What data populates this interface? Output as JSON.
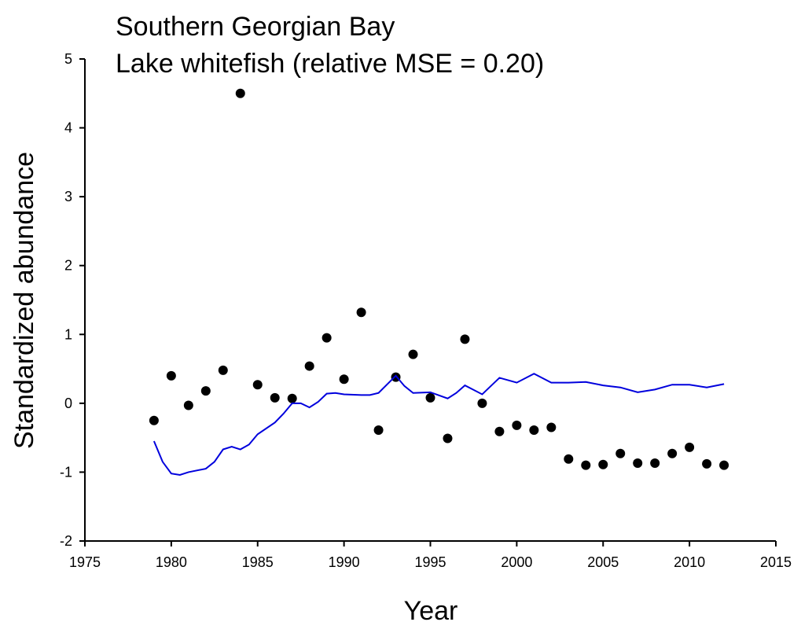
{
  "chart_data": {
    "type": "scatter",
    "title": "Southern Georgian Bay",
    "subtitle": "Lake whitefish (relative MSE = 0.20)",
    "x_label": "Year",
    "y_label": "Standardized abundance",
    "xlim": [
      1975,
      2015
    ],
    "xticks": [
      1975,
      1980,
      1985,
      1990,
      1995,
      2000,
      2005,
      2010,
      2015
    ],
    "ylim": [
      -2,
      5
    ],
    "yticks": [
      -2,
      -1,
      0,
      1,
      2,
      3,
      4,
      5
    ],
    "grid": false,
    "series": [
      {
        "style": "points",
        "color": "#000000",
        "x": [
          1979,
          1980,
          1981,
          1982,
          1983,
          1984,
          1985,
          1986,
          1987,
          1988,
          1989,
          1990,
          1991,
          1992,
          1993,
          1994,
          1995,
          1996,
          1997,
          1998,
          1999,
          2000,
          2001,
          2002,
          2003,
          2004,
          2005,
          2006,
          2007,
          2008,
          2009,
          2010,
          2011,
          2012
        ],
        "values": [
          -0.25,
          0.4,
          -0.03,
          0.18,
          0.48,
          4.5,
          0.27,
          0.08,
          0.07,
          0.54,
          0.95,
          0.35,
          1.32,
          -0.39,
          0.38,
          0.71,
          0.08,
          -0.51,
          0.93,
          0.0,
          -0.41,
          -0.32,
          -0.39,
          -0.35,
          -0.81,
          -0.9,
          -0.89,
          -0.73,
          -0.87,
          -0.87,
          -0.73,
          -0.64,
          -0.88,
          -0.9
        ]
      },
      {
        "style": "line",
        "color": "#0000dd",
        "x": [
          1979,
          1979.5,
          1980,
          1980.5,
          1981,
          1982,
          1982.5,
          1983,
          1983.5,
          1984,
          1984.5,
          1985,
          1986,
          1986.5,
          1987,
          1987.5,
          1988,
          1988.5,
          1989,
          1989.5,
          1990,
          1991,
          1991.5,
          1992,
          1993,
          1993.5,
          1994,
          1995,
          1996,
          1996.5,
          1997,
          1998,
          1998.5,
          1999,
          2000,
          2001,
          2002,
          2003,
          2004,
          2005,
          2006,
          2007,
          2008,
          2009,
          2010,
          2011,
          2012
        ],
        "values": [
          -0.55,
          -0.85,
          -1.02,
          -1.04,
          -1.0,
          -0.95,
          -0.85,
          -0.67,
          -0.63,
          -0.67,
          -0.6,
          -0.45,
          -0.28,
          -0.15,
          0.0,
          0.0,
          -0.06,
          0.02,
          0.14,
          0.15,
          0.13,
          0.12,
          0.12,
          0.15,
          0.4,
          0.25,
          0.15,
          0.16,
          0.07,
          0.15,
          0.26,
          0.13,
          0.25,
          0.37,
          0.3,
          0.43,
          0.3,
          0.3,
          0.31,
          0.26,
          0.23,
          0.16,
          0.2,
          0.27,
          0.27,
          0.23,
          0.28
        ]
      }
    ]
  }
}
